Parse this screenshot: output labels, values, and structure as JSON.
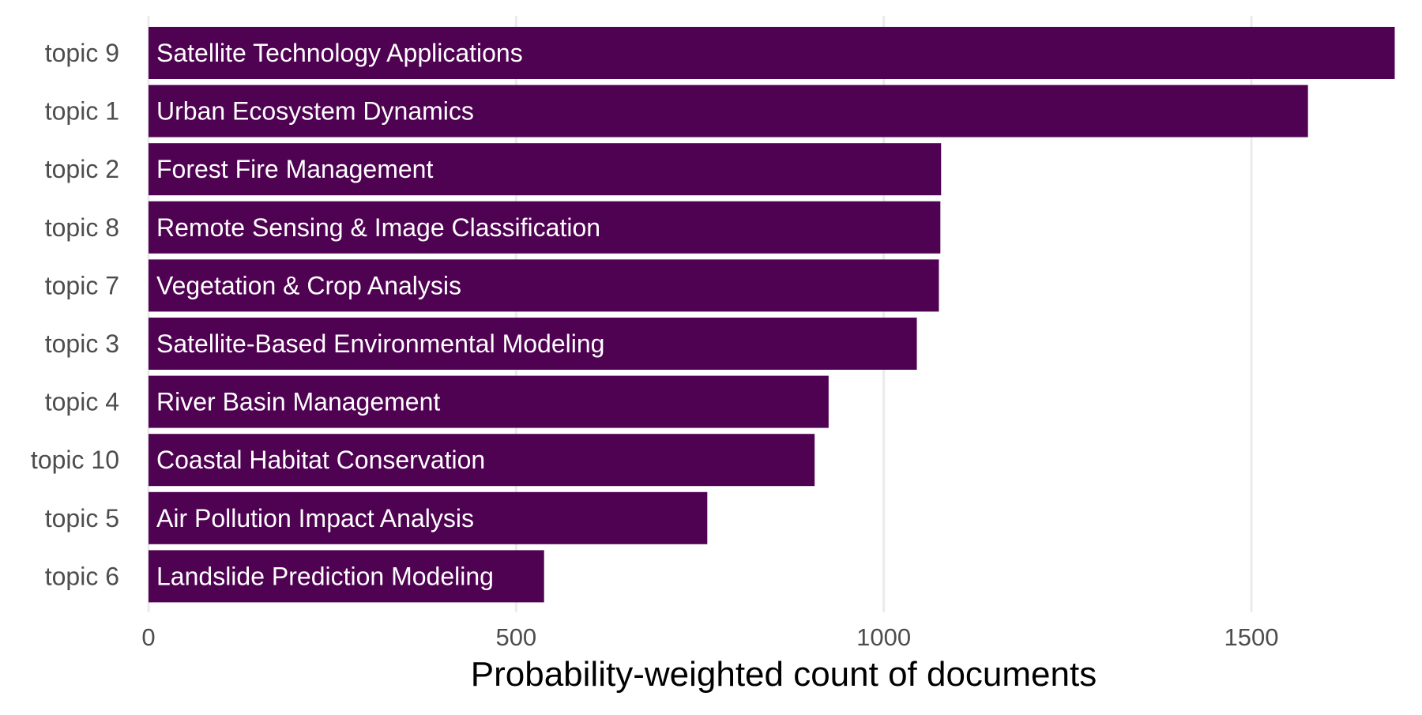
{
  "chart_data": {
    "type": "bar",
    "orientation": "horizontal",
    "xlabel": "Probability-weighted count of documents",
    "ylabel": "",
    "xlim": [
      0,
      1700
    ],
    "x_ticks": [
      0,
      500,
      1000,
      1500
    ],
    "x_tick_labels": [
      "0",
      "500",
      "1000",
      "1500"
    ],
    "grid": "vertical major gridlines",
    "legend": "none",
    "bar_color": "#4f0152",
    "gridline_color": "#ebebeb",
    "axis_text_color": "#4d4d4d",
    "bar_label_color": "#ffffff",
    "categories": [
      "topic 9",
      "topic 1",
      "topic 2",
      "topic 8",
      "topic 7",
      "topic 3",
      "topic 4",
      "topic 10",
      "topic 5",
      "topic 6"
    ],
    "bar_labels": [
      "Satellite Technology Applications",
      "Urban Ecosystem Dynamics",
      "Forest Fire Management",
      "Remote Sensing & Image Classification",
      "Vegetation & Crop Analysis",
      "Satellite-Based Environmental Modeling",
      "River Basin Management",
      "Coastal Habitat Conservation",
      "Air Pollution Impact Analysis",
      "Landslide Prediction Modeling"
    ],
    "values": [
      1695,
      1577,
      1078,
      1077,
      1075,
      1045,
      925,
      906,
      760,
      538
    ]
  }
}
